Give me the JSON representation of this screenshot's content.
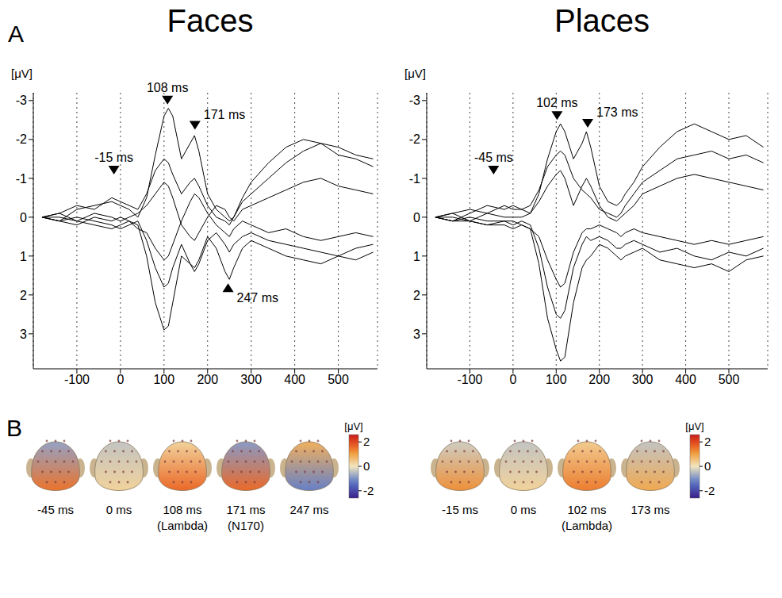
{
  "panel_labels": [
    "A",
    "B"
  ],
  "chart_data": [
    {
      "type": "line",
      "title": "Faces",
      "y_label": "[μV]",
      "x": [
        -180,
        -140,
        -100,
        -60,
        -20,
        0,
        20,
        40,
        60,
        80,
        100,
        110,
        120,
        140,
        160,
        170,
        180,
        200,
        220,
        240,
        250,
        260,
        280,
        300,
        340,
        380,
        420,
        460,
        500,
        540,
        580
      ],
      "series": [
        {
          "color": "#000000",
          "values": [
            0,
            0.1,
            -0.2,
            -0.3,
            -0.4,
            -0.3,
            -0.2,
            0,
            -0.5,
            -1.6,
            -2.6,
            -2.8,
            -2.6,
            -1.5,
            -1.9,
            -2.1,
            -1.7,
            -0.6,
            -0.2,
            0,
            0.1,
            0,
            -0.4,
            -0.6,
            -1.0,
            -1.4,
            -1.7,
            -1.9,
            -1.8,
            -1.6,
            -1.5
          ]
        },
        {
          "color": "#000000",
          "values": [
            0,
            -0.1,
            0.1,
            0.2,
            0.3,
            0.2,
            0.1,
            0.2,
            1.0,
            2.2,
            2.9,
            2.8,
            2.2,
            1.0,
            1.2,
            1.3,
            1.1,
            0.5,
            0.8,
            1.4,
            1.6,
            1.3,
            0.8,
            0.6,
            0.8,
            1.0,
            1.1,
            1.2,
            1.0,
            1.1,
            0.9
          ]
        },
        {
          "color": "#000000",
          "values": [
            0,
            -0.1,
            -0.3,
            -0.2,
            -0.5,
            -0.4,
            -0.3,
            -0.2,
            -0.6,
            -1.2,
            -1.5,
            -1.4,
            -1.1,
            -0.6,
            -0.9,
            -1.0,
            -0.8,
            -0.3,
            0,
            0.1,
            0.2,
            0,
            -0.5,
            -0.9,
            -1.4,
            -1.8,
            -2.0,
            -1.9,
            -1.6,
            -1.5,
            -1.3
          ]
        },
        {
          "color": "#000000",
          "values": [
            0,
            0.1,
            0,
            0.1,
            0.2,
            0.3,
            0.2,
            0.1,
            0.6,
            1.3,
            1.8,
            1.7,
            1.3,
            0.7,
            1.2,
            1.4,
            1.2,
            0.6,
            0.4,
            0.7,
            0.9,
            0.7,
            0.5,
            0.4,
            0.6,
            0.7,
            0.8,
            0.9,
            1.0,
            0.8,
            0.7
          ]
        },
        {
          "color": "#000000",
          "values": [
            0,
            0,
            0.1,
            -0.1,
            0,
            0.1,
            0,
            -0.1,
            -0.3,
            -0.6,
            -0.9,
            -0.8,
            -0.5,
            0.2,
            0.5,
            0.6,
            0.4,
            0,
            -0.3,
            -0.2,
            0,
            0.1,
            -0.2,
            -0.3,
            -0.5,
            -0.7,
            -0.9,
            -1.0,
            -0.8,
            -0.7,
            -0.6
          ]
        },
        {
          "color": "#000000",
          "values": [
            0,
            0.1,
            0.2,
            0,
            0.1,
            0,
            0.1,
            0.3,
            0.4,
            0.8,
            1.1,
            1.0,
            0.7,
            0.1,
            -0.4,
            -0.6,
            -0.5,
            -0.1,
            0.2,
            0.4,
            0.5,
            0.3,
            0.1,
            0.2,
            0.4,
            0.3,
            0.5,
            0.6,
            0.5,
            0.4,
            0.5
          ]
        }
      ],
      "xlim": [
        -200,
        590
      ],
      "xticks": [
        -100,
        0,
        100,
        200,
        300,
        400,
        500
      ],
      "ylim": [
        -3.2,
        3.9
      ],
      "yticks": [
        -3,
        -2,
        -1,
        0,
        1,
        2,
        3
      ],
      "grid": true,
      "annotations": [
        {
          "x": -15,
          "y": -1.1,
          "label": "-15 ms",
          "marker": "triangle-down"
        },
        {
          "x": 108,
          "y": -2.9,
          "label": "108 ms",
          "marker": "triangle-down"
        },
        {
          "x": 171,
          "y": -2.25,
          "label": "171 ms",
          "marker": "triangle-down"
        },
        {
          "x": 247,
          "y": 1.7,
          "label": "247 ms",
          "marker": "triangle-up"
        }
      ]
    },
    {
      "type": "line",
      "title": "Places",
      "y_label": "[μV]",
      "x": [
        -180,
        -140,
        -100,
        -60,
        -20,
        0,
        20,
        40,
        60,
        80,
        100,
        110,
        120,
        140,
        160,
        170,
        180,
        200,
        220,
        240,
        250,
        260,
        280,
        300,
        340,
        380,
        420,
        460,
        500,
        540,
        580
      ],
      "series": [
        {
          "color": "#000000",
          "values": [
            0,
            0.1,
            -0.1,
            -0.3,
            -0.2,
            -0.3,
            -0.2,
            -0.1,
            -0.6,
            -1.5,
            -2.2,
            -2.4,
            -2.2,
            -1.5,
            -1.9,
            -2.2,
            -1.8,
            -0.8,
            -0.4,
            -0.3,
            -0.4,
            -0.6,
            -0.9,
            -1.3,
            -1.8,
            -2.2,
            -2.4,
            -2.2,
            -2.0,
            -2.1,
            -1.8
          ]
        },
        {
          "color": "#000000",
          "values": [
            0,
            -0.1,
            0.1,
            0.2,
            0.2,
            0.3,
            0.2,
            0.3,
            1.2,
            2.6,
            3.4,
            3.7,
            3.6,
            2.2,
            1.3,
            1.1,
            1.0,
            0.7,
            0.8,
            1.0,
            1.1,
            1.0,
            0.9,
            0.8,
            1.1,
            1.2,
            1.3,
            1.2,
            1.4,
            1.1,
            1.0
          ]
        },
        {
          "color": "#000000",
          "values": [
            0,
            -0.1,
            -0.2,
            -0.1,
            -0.3,
            -0.2,
            -0.2,
            -0.3,
            -0.7,
            -1.3,
            -1.6,
            -1.7,
            -1.6,
            -1.0,
            -0.7,
            -0.6,
            -0.5,
            -0.2,
            -0.1,
            0,
            -0.1,
            -0.3,
            -0.6,
            -0.9,
            -1.2,
            -1.5,
            -1.6,
            -1.7,
            -1.5,
            -1.6,
            -1.4
          ]
        },
        {
          "color": "#000000",
          "values": [
            0,
            0.1,
            0,
            0.1,
            0.1,
            0.2,
            0.1,
            0.2,
            0.8,
            1.8,
            2.5,
            2.6,
            2.4,
            1.3,
            0.7,
            0.5,
            0.6,
            0.5,
            0.6,
            0.8,
            0.8,
            0.7,
            0.6,
            0.7,
            0.9,
            0.8,
            1.0,
            1.1,
            0.9,
            1.0,
            0.8
          ]
        },
        {
          "color": "#000000",
          "values": [
            0,
            0,
            0.1,
            -0.1,
            0,
            0,
            0,
            -0.1,
            -0.4,
            -0.8,
            -1.1,
            -1.2,
            -1.0,
            -0.3,
            -0.8,
            -1.0,
            -0.8,
            -0.3,
            0,
            0.1,
            0,
            -0.1,
            -0.3,
            -0.6,
            -0.8,
            -1.0,
            -1.1,
            -1.0,
            -0.9,
            -0.8,
            -0.7
          ]
        },
        {
          "color": "#000000",
          "values": [
            0,
            0.1,
            0.1,
            0.2,
            0.1,
            0.1,
            0.2,
            0.3,
            0.5,
            1.1,
            1.6,
            1.8,
            1.7,
            0.9,
            0.4,
            0.3,
            0.3,
            0.2,
            0.3,
            0.4,
            0.5,
            0.4,
            0.3,
            0.4,
            0.5,
            0.6,
            0.7,
            0.6,
            0.7,
            0.6,
            0.5
          ]
        }
      ],
      "xlim": [
        -200,
        590
      ],
      "xticks": [
        -100,
        0,
        100,
        200,
        300,
        400,
        500
      ],
      "ylim": [
        -3.2,
        3.9
      ],
      "yticks": [
        -3,
        -2,
        -1,
        0,
        1,
        2,
        3
      ],
      "grid": true,
      "annotations": [
        {
          "x": -45,
          "y": -1.1,
          "label": "-45 ms",
          "marker": "triangle-down"
        },
        {
          "x": 102,
          "y": -2.5,
          "label": "102 ms",
          "marker": "triangle-down"
        },
        {
          "x": 173,
          "y": -2.3,
          "label": "173 ms",
          "marker": "triangle-down"
        }
      ]
    }
  ],
  "topographies": [
    {
      "maps": [
        {
          "label": "-45 ms",
          "upper": -0.8,
          "lower": 1.5
        },
        {
          "label": "0 ms",
          "upper": -0.4,
          "lower": 0.3
        },
        {
          "label": "108 ms",
          "component": "(Lambda)",
          "upper": 0.3,
          "lower": 1.6
        },
        {
          "label": "171 ms",
          "component": "(N170)",
          "upper": -0.9,
          "lower": 1.6
        },
        {
          "label": "247 ms",
          "upper": 0.8,
          "lower": -1.2
        }
      ],
      "colorbar": {
        "label": "[μV]",
        "range": [
          -2.6,
          2.6
        ],
        "ticks": [
          -2,
          0,
          2
        ]
      }
    },
    {
      "maps": [
        {
          "label": "-15 ms",
          "upper": -0.3,
          "lower": 1.2
        },
        {
          "label": "0 ms",
          "upper": -0.4,
          "lower": 0.3
        },
        {
          "label": "102 ms",
          "component": "(Lambda)",
          "upper": 0.4,
          "lower": 1.4
        },
        {
          "label": "173 ms",
          "upper": -0.4,
          "lower": 0.9
        }
      ],
      "colorbar": {
        "label": "[μV]",
        "range": [
          -2.6,
          2.6
        ],
        "ticks": [
          -2,
          0,
          2
        ]
      }
    }
  ]
}
